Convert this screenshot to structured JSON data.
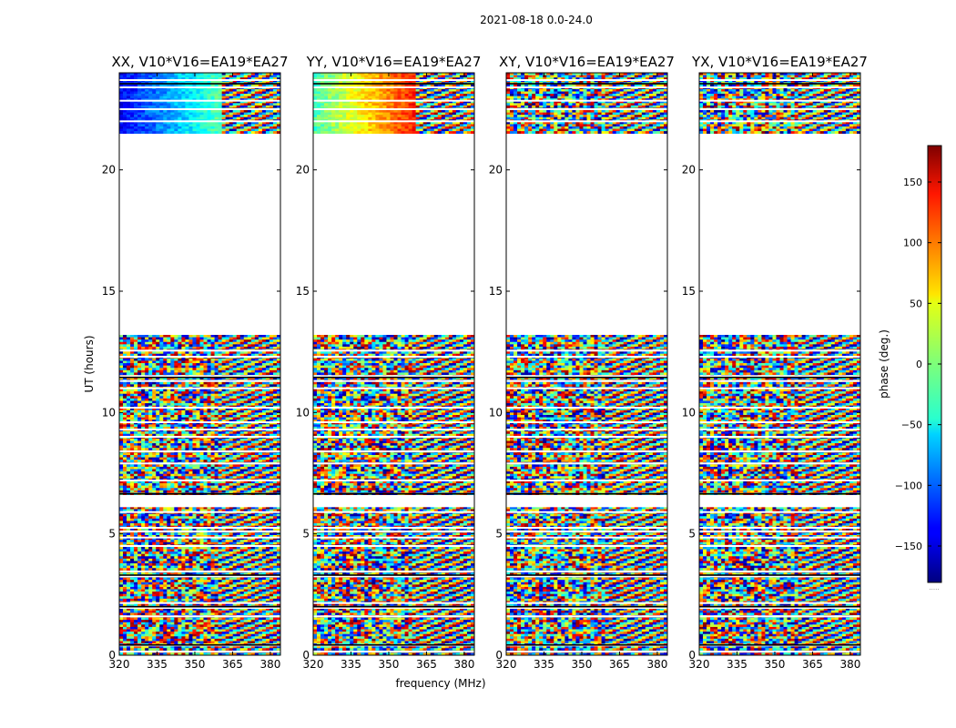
{
  "chart_data": {
    "type": "heatmap",
    "suptitle": "2021-08-18 0.0-24.0",
    "xlabel": "frequency (MHz)",
    "ylabel": "UT (hours)",
    "xlim": [
      320,
      384
    ],
    "ylim": [
      0,
      24
    ],
    "x_ticks": [
      320,
      335,
      350,
      365,
      380
    ],
    "y_ticks": [
      0,
      5,
      10,
      15,
      20
    ],
    "colorbar": {
      "label": "phase (deg.)",
      "range": [
        -180,
        180
      ],
      "ticks": [
        150,
        100,
        50,
        0,
        -50,
        -100,
        -150
      ],
      "tick_labels": [
        "150",
        "100",
        "50",
        "0",
        "−50",
        "−100",
        "−150"
      ],
      "colormap": "jet",
      "bottom_note": "....."
    },
    "data_time_ranges_hours": [
      [
        0,
        6.6
      ],
      [
        6.6,
        13.2
      ],
      [
        21.5,
        24.0
      ]
    ],
    "panels": [
      {
        "title": "XX, V10*V16=EA19*EA27"
      },
      {
        "title": "YY, V10*V16=EA19*EA27"
      },
      {
        "title": "XY, V10*V16=EA19*EA27"
      },
      {
        "title": "YX, V10*V16=EA19*EA27"
      }
    ]
  }
}
